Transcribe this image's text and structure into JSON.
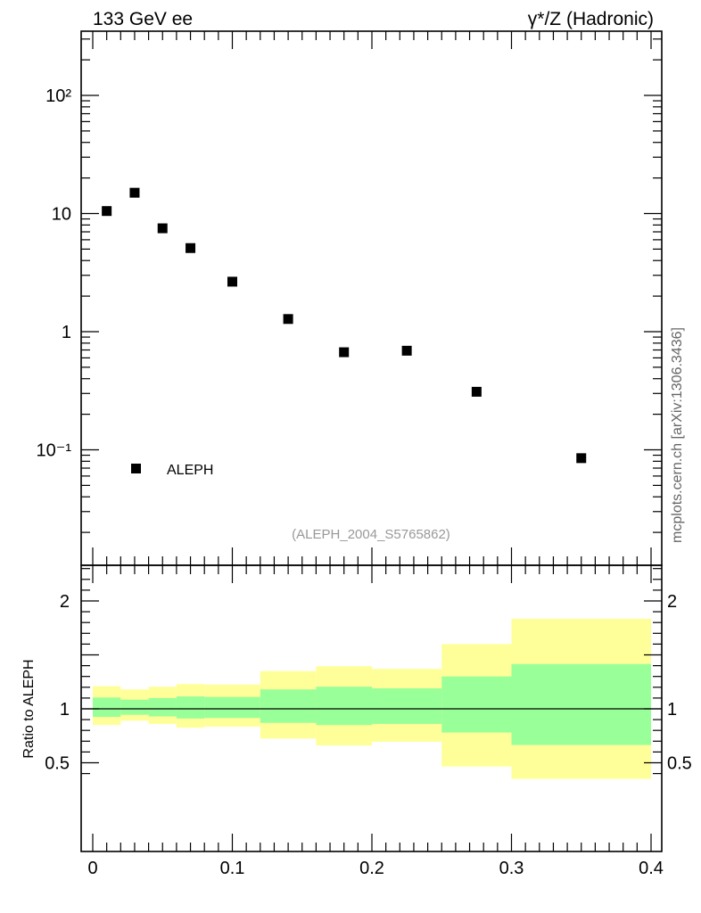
{
  "header": {
    "left_title": "133 GeV ee",
    "right_title": "γ*/Z (Hadronic)"
  },
  "side_label": "mcplots.cern.ch [arXiv:1306.3436]",
  "watermark": "(ALEPH_2004_S5765862)",
  "chart_data": [
    {
      "type": "scatter",
      "panel": "main",
      "yscale": "log",
      "xlim": [
        -0.02,
        0.405
      ],
      "ylim": [
        0.01,
        330
      ],
      "y_tick_labels": [
        "10⁻¹",
        "1",
        "10",
        "10²"
      ],
      "legend_position": "bottom-left",
      "series": [
        {
          "name": "ALEPH",
          "color": "#000000",
          "x": [
            0.01,
            0.03,
            0.05,
            0.07,
            0.1,
            0.14,
            0.18,
            0.225,
            0.275,
            0.35
          ],
          "y": [
            10.5,
            15,
            7.5,
            5.1,
            2.65,
            1.28,
            0.67,
            0.69,
            0.31,
            0.085
          ]
        }
      ]
    },
    {
      "type": "area",
      "panel": "ratio",
      "ylabel": "Ratio to ALEPH",
      "ylim": [
        0.35,
        2.3
      ],
      "y_tick_labels": [
        "0.5",
        "1",
        "2"
      ],
      "x_tick_labels": [
        "0",
        "0.1",
        "0.2",
        "0.3",
        "0.4"
      ],
      "reference_line": 1,
      "bin_edges": [
        0,
        0.02,
        0.04,
        0.06,
        0.08,
        0.12,
        0.16,
        0.2,
        0.25,
        0.3,
        0.4
      ],
      "bands": [
        {
          "role": "total uncertainty",
          "color": "#ffff99",
          "lower": [
            0.85,
            0.89,
            0.86,
            0.825,
            0.835,
            0.725,
            0.66,
            0.695,
            0.465,
            0.33
          ],
          "upper": [
            1.21,
            1.18,
            1.205,
            1.23,
            1.225,
            1.35,
            1.395,
            1.37,
            1.6,
            1.835
          ]
        },
        {
          "role": "statistical uncertainty",
          "color": "#99ff99",
          "lower": [
            0.925,
            0.945,
            0.93,
            0.91,
            0.915,
            0.87,
            0.85,
            0.86,
            0.78,
            0.665
          ],
          "upper": [
            1.105,
            1.085,
            1.1,
            1.115,
            1.11,
            1.18,
            1.205,
            1.19,
            1.3,
            1.415
          ]
        }
      ]
    }
  ]
}
